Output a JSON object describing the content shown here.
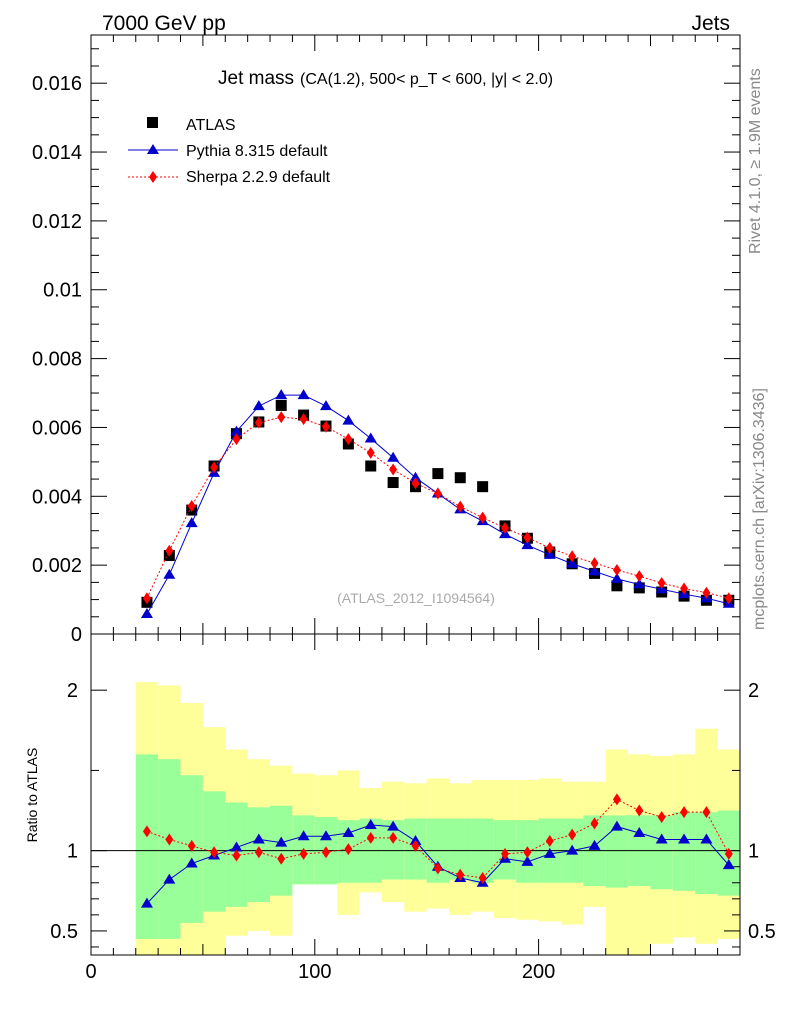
{
  "header": {
    "left": "7000 GeV pp",
    "right": "Jets"
  },
  "side_text": {
    "rivet": "Rivet 4.1.0, ≥ 1.9M events",
    "mcplots": "mcplots.cern.ch [arXiv:1306.3436]"
  },
  "chart_data": {
    "type": "scatter",
    "title": "Jet mass",
    "subtitle": "(CA(1.2), 500< p_T < 600, |y| < 2.0)",
    "watermark": "(ATLAS_2012_I1094564)",
    "xlim": [
      0,
      290
    ],
    "ylim_main": [
      0,
      0.0174
    ],
    "ylim_ratio": [
      0.35,
      2.35
    ],
    "y_ticks_main": [
      {
        "v": 0,
        "label": "0"
      },
      {
        "v": 0.002,
        "label": "0.002"
      },
      {
        "v": 0.004,
        "label": "0.004"
      },
      {
        "v": 0.006,
        "label": "0.006"
      },
      {
        "v": 0.008,
        "label": "0.008"
      },
      {
        "v": 0.01,
        "label": "0.01"
      },
      {
        "v": 0.012,
        "label": "0.012"
      },
      {
        "v": 0.014,
        "label": "0.014"
      },
      {
        "v": 0.016,
        "label": "0.016"
      }
    ],
    "y_ticks_ratio": [
      {
        "v": 0.5,
        "label": "0.5"
      },
      {
        "v": 1,
        "label": "1"
      },
      {
        "v": 2,
        "label": "2"
      }
    ],
    "x_ticks": [
      {
        "v": 0,
        "label": "0"
      },
      {
        "v": 100,
        "label": "100"
      },
      {
        "v": 200,
        "label": "200"
      }
    ],
    "ratio_ylabel": "Ratio to ATLAS",
    "x": [
      25,
      35,
      45,
      55,
      65,
      75,
      85,
      95,
      105,
      115,
      125,
      135,
      145,
      155,
      165,
      175,
      185,
      195,
      205,
      215,
      225,
      235,
      245,
      255,
      265,
      275,
      285
    ],
    "bin_edges": [
      20,
      30,
      40,
      50,
      60,
      70,
      80,
      90,
      100,
      110,
      120,
      130,
      140,
      150,
      160,
      170,
      180,
      190,
      200,
      210,
      220,
      230,
      240,
      250,
      260,
      270,
      280,
      290
    ],
    "series": [
      {
        "name": "ATLAS",
        "color": "#000000",
        "marker": "square",
        "values": [
          0.00092,
          0.00228,
          0.0036,
          0.00488,
          0.00582,
          0.00616,
          0.00664,
          0.00636,
          0.00604,
          0.00552,
          0.00488,
          0.0044,
          0.00428,
          0.00466,
          0.00454,
          0.00428,
          0.00314,
          0.00278,
          0.00238,
          0.00204,
          0.00176,
          0.0014,
          0.00134,
          0.00122,
          0.0011,
          0.00098,
          0.00098
        ]
      },
      {
        "name": "Pythia 8.315 default",
        "color": "#0000cc",
        "marker": "triangle",
        "line": "solid",
        "values": [
          0.00058,
          0.00172,
          0.00322,
          0.00468,
          0.00588,
          0.00662,
          0.00694,
          0.00694,
          0.00662,
          0.0062,
          0.00568,
          0.00512,
          0.00454,
          0.00408,
          0.00362,
          0.00328,
          0.0029,
          0.00258,
          0.0023,
          0.00204,
          0.00182,
          0.0016,
          0.00144,
          0.0013,
          0.00116,
          0.00104,
          0.00088
        ]
      },
      {
        "name": "Sherpa 2.2.9 default",
        "color": "#ff0000",
        "marker": "diamond",
        "line": "dotted",
        "values": [
          0.00104,
          0.00242,
          0.00372,
          0.00484,
          0.00566,
          0.00614,
          0.0063,
          0.00624,
          0.00602,
          0.00566,
          0.00526,
          0.00478,
          0.00438,
          0.00408,
          0.0037,
          0.00338,
          0.00308,
          0.0028,
          0.0025,
          0.00226,
          0.00206,
          0.00186,
          0.00168,
          0.00148,
          0.00132,
          0.0012,
          0.00104
        ]
      }
    ],
    "ratio_series": [
      {
        "name": "Pythia 8.315 default",
        "values": [
          0.67,
          0.82,
          0.92,
          0.97,
          1.02,
          1.07,
          1.05,
          1.09,
          1.09,
          1.11,
          1.16,
          1.15,
          1.06,
          0.9,
          0.83,
          0.8,
          0.95,
          0.93,
          0.98,
          1.0,
          1.03,
          1.15,
          1.11,
          1.07,
          1.07,
          1.07,
          0.91
        ]
      },
      {
        "name": "Sherpa 2.2.9 default",
        "values": [
          1.12,
          1.07,
          1.03,
          0.99,
          0.97,
          0.99,
          0.95,
          0.98,
          0.99,
          1.01,
          1.08,
          1.08,
          1.03,
          0.89,
          0.85,
          0.83,
          0.98,
          0.99,
          1.06,
          1.1,
          1.17,
          1.32,
          1.25,
          1.21,
          1.24,
          1.24,
          0.98
        ]
      }
    ],
    "bands": {
      "inner_color": "#99ff99",
      "outer_color": "#ffff99",
      "inner_lo": [
        0.45,
        0.45,
        0.55,
        0.62,
        0.65,
        0.68,
        0.72,
        0.79,
        0.79,
        0.8,
        0.8,
        0.82,
        0.82,
        0.8,
        0.82,
        0.8,
        0.82,
        0.8,
        0.8,
        0.8,
        0.78,
        0.77,
        0.78,
        0.76,
        0.75,
        0.73,
        0.72
      ],
      "inner_hi": [
        1.6,
        1.57,
        1.47,
        1.37,
        1.3,
        1.27,
        1.28,
        1.22,
        1.21,
        1.19,
        1.2,
        1.19,
        1.2,
        1.2,
        1.2,
        1.2,
        1.19,
        1.19,
        1.2,
        1.2,
        1.22,
        1.22,
        1.22,
        1.22,
        1.24,
        1.24,
        1.25
      ],
      "outer_lo": [
        0.33,
        0.33,
        0.35,
        0.35,
        0.47,
        0.5,
        0.47,
        0.79,
        0.79,
        0.6,
        0.74,
        0.68,
        0.62,
        0.64,
        0.6,
        0.62,
        0.58,
        0.57,
        0.56,
        0.54,
        0.65,
        0.32,
        0.35,
        0.42,
        0.46,
        0.42,
        0.45
      ],
      "outer_hi": [
        2.05,
        2.03,
        1.92,
        1.77,
        1.63,
        1.57,
        1.53,
        1.48,
        1.47,
        1.5,
        1.39,
        1.43,
        1.42,
        1.45,
        1.42,
        1.44,
        1.44,
        1.44,
        1.45,
        1.43,
        1.43,
        1.63,
        1.6,
        1.59,
        1.6,
        1.76,
        1.63
      ]
    }
  }
}
